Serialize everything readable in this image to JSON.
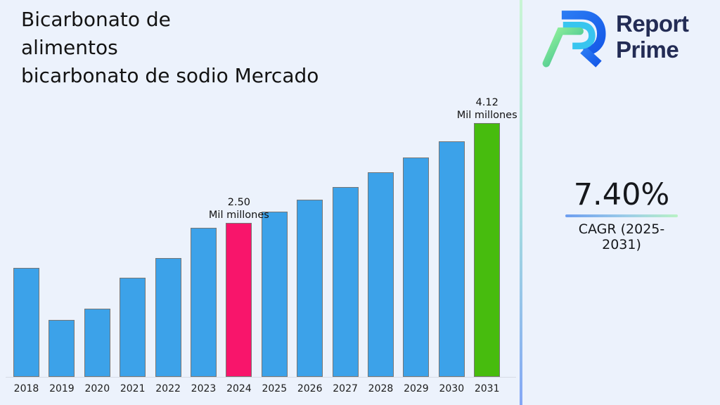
{
  "title": {
    "lines": [
      "Bicarbonato de",
      "alimentos",
      "bicarbonato de sodio Mercado"
    ]
  },
  "logo": {
    "line1": "Report",
    "line2": "Prime",
    "colors": {
      "text": "#232C55",
      "blue": "#1E6FF0",
      "cyan": "#38C5EF",
      "green_light": "#97F59B",
      "green_dark": "#2EB58F"
    }
  },
  "cagr": {
    "value": "7.40%",
    "label": "CAGR (2025-2031)"
  },
  "chart_data": {
    "type": "bar",
    "title": "Bicarbonato de alimentos bicarbonato de sodio Mercado",
    "unit": "Mil millones",
    "categories": [
      "2018",
      "2019",
      "2020",
      "2021",
      "2022",
      "2023",
      "2024",
      "2025",
      "2026",
      "2027",
      "2028",
      "2029",
      "2030",
      "2031"
    ],
    "values": [
      1.77,
      0.92,
      1.11,
      1.61,
      1.93,
      2.42,
      2.5,
      2.68,
      2.88,
      3.09,
      3.32,
      3.56,
      3.83,
      4.12
    ],
    "xlabel": "",
    "ylabel": "",
    "ylim": [
      0,
      4.5
    ],
    "grid": false,
    "legend": false,
    "colors": {
      "default": "#3CA2E9",
      "border": "#767676",
      "highlight_base_year": "#F8156B",
      "highlight_forecast_year": "#47BC0E"
    },
    "bar_colors": {
      "6": "#F8156B",
      "13": "#47BC0E"
    },
    "annotations": [
      {
        "index": 6,
        "lines": [
          "2.50",
          "Mil millones"
        ]
      },
      {
        "index": 13,
        "lines": [
          "4.12",
          "Mil millones"
        ]
      }
    ]
  }
}
